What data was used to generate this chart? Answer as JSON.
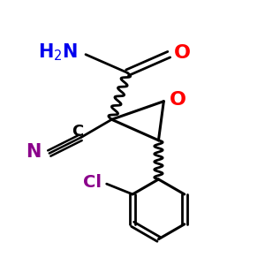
{
  "bg_color": "#ffffff",
  "colors": {
    "O": "#ff0000",
    "N_amide": "#0000ee",
    "N_nitrile": "#8b008b",
    "Cl": "#8b008b",
    "bond": "#000000"
  }
}
